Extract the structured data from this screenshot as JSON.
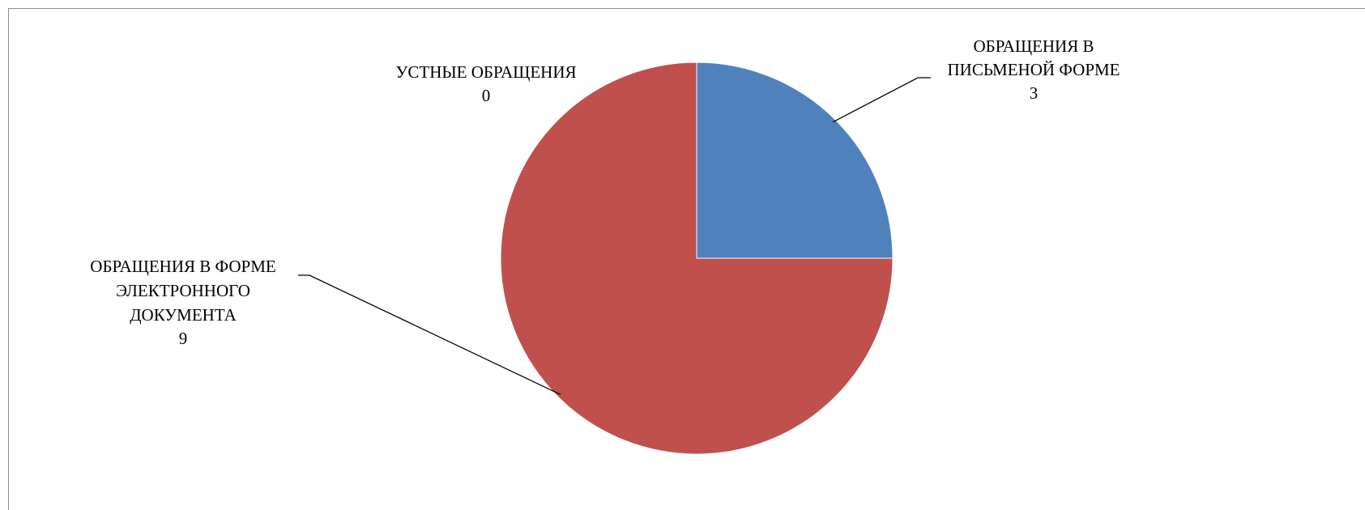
{
  "chart_data": {
    "type": "pie",
    "categories": [
      "ОБРАЩЕНИЯ В ПИСЬМЕНОЙ ФОРМЕ",
      "ОБРАЩЕНИЯ В ФОРМЕ ЭЛЕКТРОННОГО ДОКУМЕНТА",
      "УСТНЫЕ ОБРАЩЕНИЯ"
    ],
    "values": [
      3,
      9,
      0
    ],
    "colors": [
      "#4f81bd",
      "#c0504d",
      "#9bbb59"
    ],
    "legend": "none",
    "data_labels": [
      {
        "lines": [
          "ОБРАЩЕНИЯ В",
          "ПИСЬМЕНОЙ ФОРМЕ"
        ],
        "value": "3"
      },
      {
        "lines": [
          "ОБРАЩЕНИЯ В ФОРМЕ",
          "ЭЛЕКТРОННОГО",
          "ДОКУМЕНТА"
        ],
        "value": "9"
      },
      {
        "lines": [
          "УСТНЫЕ ОБРАЩЕНИЯ"
        ],
        "value": "0"
      }
    ]
  }
}
